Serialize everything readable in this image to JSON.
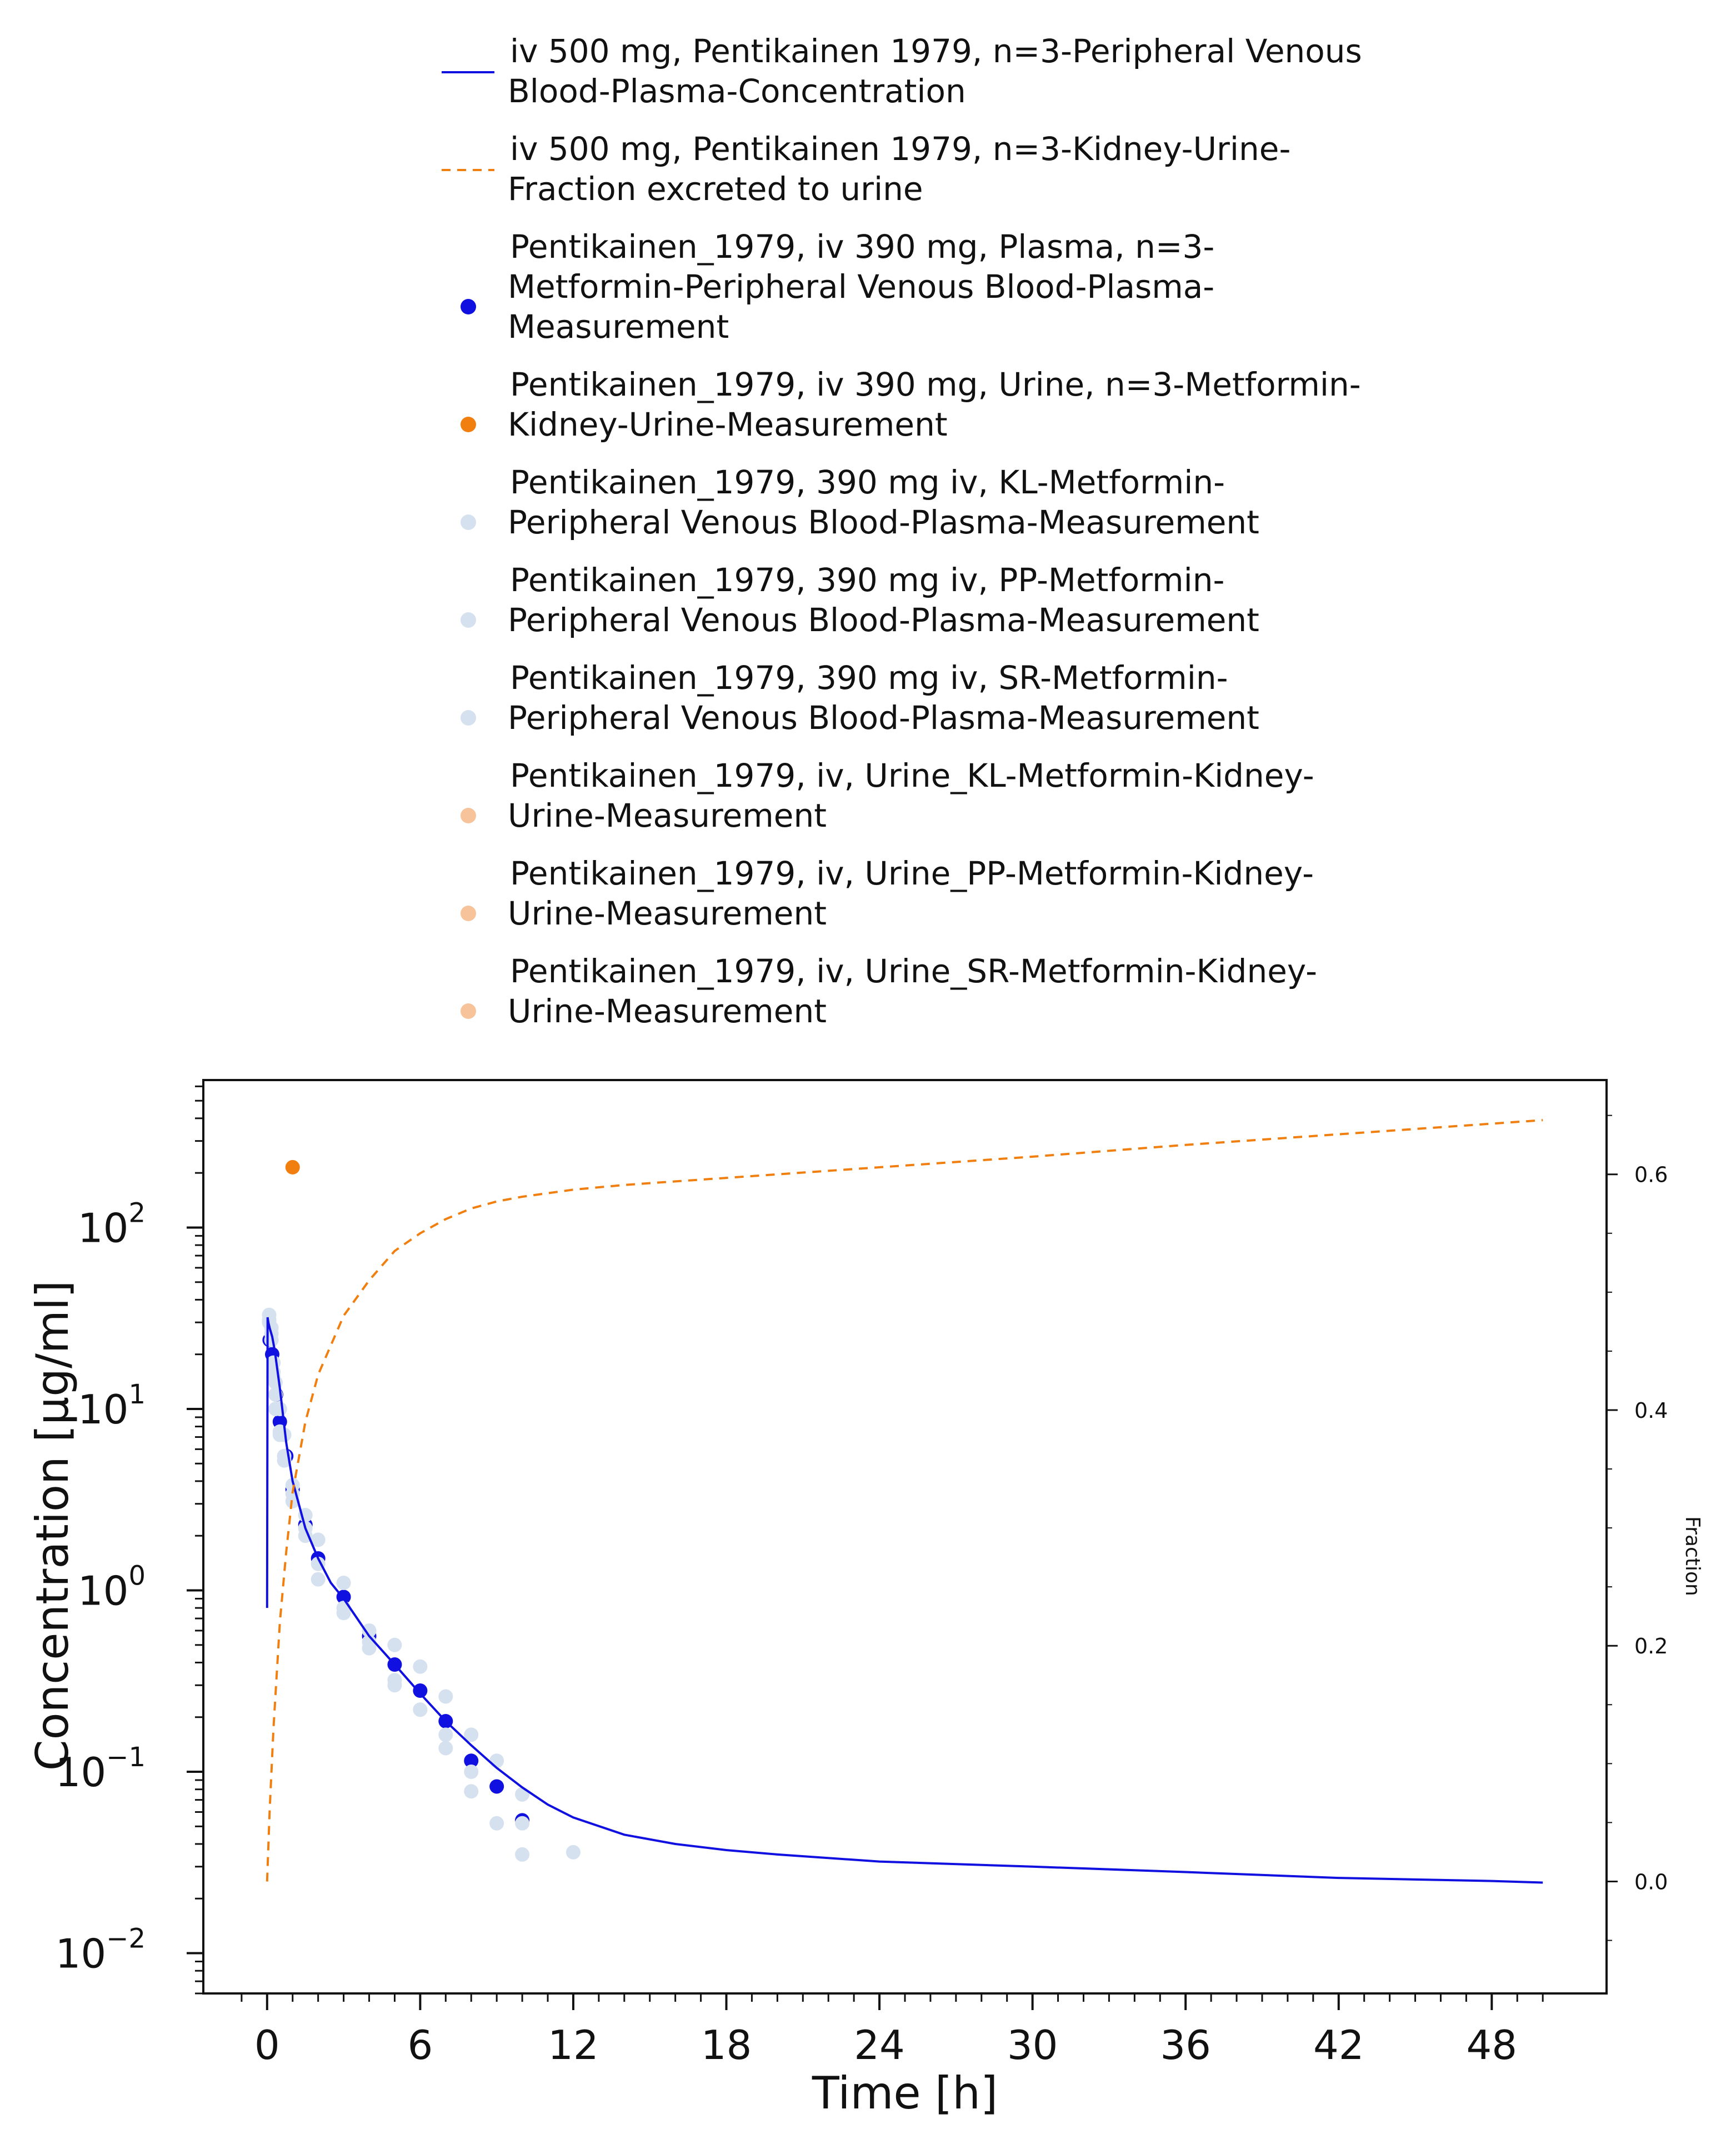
{
  "chart_data": {
    "type": "line",
    "xlabel": "Time [h]",
    "ylabel": "Concentration [µg/ml]",
    "y2label": "Fraction",
    "xlim": [
      -2.5,
      52.5
    ],
    "ylim": [
      0.006,
      650
    ],
    "y_scale": "log",
    "y2lim": [
      -0.095,
      0.68
    ],
    "grid": false,
    "legend_position": "top, outside the plot",
    "x_ticks": [
      0,
      6,
      12,
      18,
      24,
      30,
      36,
      42,
      48
    ],
    "y_ticks": [
      {
        "base": "10",
        "exp": "2",
        "value": 100
      },
      {
        "base": "10",
        "exp": "1",
        "value": 10
      },
      {
        "base": "10",
        "exp": "0",
        "value": 1
      },
      {
        "base": "10",
        "exp": "−1",
        "value": 0.1
      },
      {
        "base": "10",
        "exp": "−2",
        "value": 0.01
      }
    ],
    "y2_ticks": [
      "0.0",
      "0.2",
      "0.4",
      "0.6"
    ],
    "series": [
      {
        "name": "iv 500 mg, Pentikainen 1979, n=3-Peripheral Venous Blood-Plasma-Concentration",
        "kind": "line",
        "style": "solid",
        "color": "#1010e0",
        "axis": "left",
        "x": [
          0,
          0.02,
          0.05,
          0.1,
          0.2,
          0.3,
          0.5,
          0.75,
          1,
          1.5,
          2,
          2.5,
          3,
          4,
          5,
          6,
          7,
          8,
          9,
          10,
          11,
          12,
          14,
          16,
          18,
          20,
          24,
          30,
          36,
          42,
          48,
          50
        ],
        "y": [
          0.8,
          32,
          30,
          28,
          25,
          21,
          13,
          6.5,
          4.0,
          2.2,
          1.5,
          1.1,
          0.9,
          0.56,
          0.39,
          0.27,
          0.19,
          0.14,
          0.105,
          0.082,
          0.066,
          0.056,
          0.045,
          0.04,
          0.037,
          0.035,
          0.032,
          0.03,
          0.028,
          0.026,
          0.025,
          0.0245
        ]
      },
      {
        "name": "iv 500 mg, Pentikainen 1979, n=3-Kidney-Urine-Fraction excreted to urine",
        "kind": "line",
        "style": "dashed",
        "color": "#f07f10",
        "axis": "right",
        "x": [
          0,
          0.1,
          0.25,
          0.5,
          0.75,
          1,
          1.5,
          2,
          3,
          4,
          5,
          6,
          7,
          8,
          9,
          10,
          12,
          14,
          16,
          18,
          20,
          24,
          30,
          36,
          42,
          48,
          50
        ],
        "y": [
          0.0,
          0.06,
          0.13,
          0.22,
          0.28,
          0.33,
          0.39,
          0.43,
          0.48,
          0.51,
          0.535,
          0.55,
          0.562,
          0.571,
          0.577,
          0.581,
          0.587,
          0.591,
          0.594,
          0.597,
          0.6,
          0.606,
          0.615,
          0.625,
          0.634,
          0.643,
          0.646
        ]
      },
      {
        "name": "Pentikainen_1979, iv 390 mg, Plasma, n=3-Metformin-Peripheral Venous Blood-Plasma-Measurement",
        "kind": "scatter",
        "color": "#1010e0",
        "axis": "left",
        "x": [
          0.1,
          0.2,
          0.35,
          0.5,
          0.75,
          1,
          1.5,
          2,
          3,
          4,
          5,
          6,
          7,
          8,
          9,
          10
        ],
        "y": [
          24,
          20,
          12,
          8.5,
          5.5,
          3.6,
          2.3,
          1.5,
          0.92,
          0.56,
          0.39,
          0.28,
          0.19,
          0.115,
          0.083,
          0.054
        ]
      },
      {
        "name": "Pentikainen_1979, iv 390 mg, Urine, n=3-Metformin-Kidney-Urine-Measurement",
        "kind": "scatter",
        "color": "#f07f10",
        "axis": "left",
        "x": [
          1
        ],
        "y": [
          215
        ]
      },
      {
        "name": "Pentikainen_1979, 390 mg iv, KL-Metformin-Peripheral Venous Blood-Plasma-Measurement",
        "kind": "scatter",
        "color": "#d6e1f0",
        "axis": "left",
        "x": [
          0.08,
          0.17,
          0.25,
          0.33,
          0.5,
          0.67,
          1,
          1.5,
          2,
          3,
          4,
          5,
          6,
          7,
          8,
          9,
          10
        ],
        "y": [
          33,
          28,
          18,
          14,
          10,
          7.2,
          3.8,
          2.6,
          1.9,
          1.1,
          0.6,
          0.5,
          0.38,
          0.26,
          0.16,
          0.115,
          0.075
        ]
      },
      {
        "name": "Pentikainen_1979, 390 mg iv, PP-Metformin-Peripheral Venous Blood-Plasma-Measurement",
        "kind": "scatter",
        "color": "#d6e1f0",
        "axis": "left",
        "x": [
          0.08,
          0.17,
          0.25,
          0.33,
          0.5,
          0.67,
          1,
          1.5,
          2,
          3,
          4,
          5,
          6,
          7,
          8,
          9,
          10
        ],
        "y": [
          31,
          26,
          16,
          12,
          7.5,
          5.2,
          3.1,
          2.0,
          1.4,
          0.8,
          0.52,
          0.32,
          0.22,
          0.16,
          0.1,
          0.052,
          0.052
        ]
      },
      {
        "name": "Pentikainen_1979, 390 mg iv, SR-Metformin-Peripheral Venous Blood-Plasma-Measurement",
        "kind": "scatter",
        "color": "#d6e1f0",
        "axis": "left",
        "x": [
          0.08,
          0.17,
          0.25,
          0.33,
          0.5,
          0.67,
          1,
          1.5,
          2,
          3,
          4,
          5,
          6,
          7,
          8,
          10,
          12
        ],
        "y": [
          30,
          24,
          15,
          10,
          7.2,
          5.5,
          3.4,
          2.2,
          1.15,
          0.75,
          0.48,
          0.3,
          0.22,
          0.135,
          0.078,
          0.035,
          0.036
        ]
      },
      {
        "name": "Pentikainen_1979, iv, Urine_KL-Metformin-Kidney-Urine-Measurement",
        "kind": "scatter",
        "color": "#f6c39a",
        "axis": "right",
        "x": [],
        "y": []
      },
      {
        "name": "Pentikainen_1979, iv, Urine_PP-Metformin-Kidney-Urine-Measurement",
        "kind": "scatter",
        "color": "#f6c39a",
        "axis": "right",
        "x": [],
        "y": []
      },
      {
        "name": "Pentikainen_1979, iv, Urine_SR-Metformin-Kidney-Urine-Measurement",
        "kind": "scatter",
        "color": "#f6c39a",
        "axis": "right",
        "x": [],
        "y": []
      }
    ]
  },
  "legend": [
    {
      "marker": "line-solid",
      "color": "#1010e0",
      "lines": [
        "iv 500 mg, Pentikainen 1979, n=3-Peripheral Venous",
        "Blood-Plasma-Concentration"
      ]
    },
    {
      "marker": "line-dashed",
      "color": "#f07f10",
      "lines": [
        "iv 500 mg, Pentikainen 1979, n=3-Kidney-Urine-",
        "Fraction excreted to urine"
      ]
    },
    {
      "marker": "dot",
      "color": "#1010e0",
      "lines": [
        "Pentikainen_1979, iv 390 mg, Plasma, n=3-",
        "Metformin-Peripheral Venous Blood-Plasma-",
        "Measurement"
      ]
    },
    {
      "marker": "dot",
      "color": "#f07f10",
      "lines": [
        "Pentikainen_1979, iv 390 mg, Urine, n=3-Metformin-",
        "Kidney-Urine-Measurement"
      ]
    },
    {
      "marker": "dot",
      "color": "#d6e1f0",
      "lines": [
        "Pentikainen_1979, 390 mg iv, KL-Metformin-",
        "Peripheral Venous Blood-Plasma-Measurement"
      ]
    },
    {
      "marker": "dot",
      "color": "#d6e1f0",
      "lines": [
        "Pentikainen_1979, 390 mg iv, PP-Metformin-",
        "Peripheral Venous Blood-Plasma-Measurement"
      ]
    },
    {
      "marker": "dot",
      "color": "#d6e1f0",
      "lines": [
        "Pentikainen_1979, 390 mg iv, SR-Metformin-",
        "Peripheral Venous Blood-Plasma-Measurement"
      ]
    },
    {
      "marker": "dot",
      "color": "#f6c39a",
      "lines": [
        "Pentikainen_1979, iv, Urine_KL-Metformin-Kidney-",
        "Urine-Measurement"
      ]
    },
    {
      "marker": "dot",
      "color": "#f6c39a",
      "lines": [
        "Pentikainen_1979, iv, Urine_PP-Metformin-Kidney-",
        "Urine-Measurement"
      ]
    },
    {
      "marker": "dot",
      "color": "#f6c39a",
      "lines": [
        "Pentikainen_1979, iv, Urine_SR-Metformin-Kidney-",
        "Urine-Measurement"
      ]
    }
  ]
}
